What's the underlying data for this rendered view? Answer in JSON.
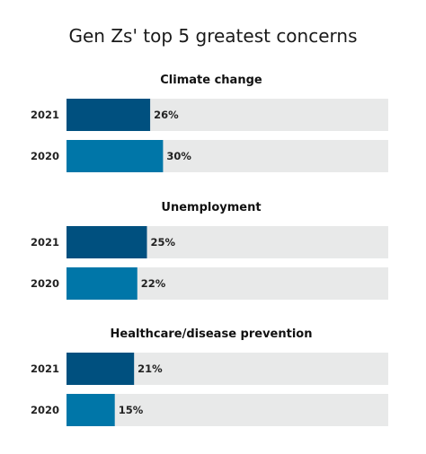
{
  "chart_data": {
    "type": "bar",
    "orientation": "horizontal",
    "title": "Gen Zs' top 5 greatest concerns",
    "xlim": [
      0,
      100
    ],
    "unit_suffix": "%",
    "grid": false,
    "groups": [
      {
        "name": "Climate change",
        "bars": [
          {
            "label": "2021",
            "value": 26,
            "color": "#00507f"
          },
          {
            "label": "2020",
            "value": 30,
            "color": "#0076a8"
          }
        ]
      },
      {
        "name": "Unemployment",
        "bars": [
          {
            "label": "2021",
            "value": 25,
            "color": "#00507f"
          },
          {
            "label": "2020",
            "value": 22,
            "color": "#0076a8"
          }
        ]
      },
      {
        "name": "Healthcare/disease prevention",
        "bars": [
          {
            "label": "2021",
            "value": 21,
            "color": "#00507f"
          },
          {
            "label": "2020",
            "value": 15,
            "color": "#0076a8"
          }
        ]
      }
    ],
    "track_color": "#e8e9e9"
  }
}
